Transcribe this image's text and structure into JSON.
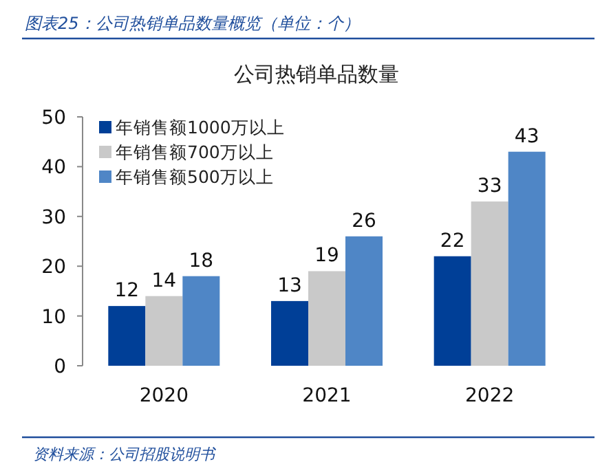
{
  "chart_data": {
    "type": "bar",
    "title": "公司热销单品数量",
    "annotations": [
      "图表25：公司热销单品数量概览（单位：个）",
      "资料来源：公司招股说明书"
    ],
    "categories": [
      "2020",
      "2021",
      "2022"
    ],
    "series": [
      {
        "name": "年销售额1000万以上",
        "color": "#003f97",
        "values": [
          12,
          13,
          22
        ]
      },
      {
        "name": "年销售额700万以上",
        "color": "#c9c9c9",
        "values": [
          14,
          19,
          33
        ]
      },
      {
        "name": "年销售额500万以上",
        "color": "#4f86c6",
        "values": [
          18,
          26,
          43
        ]
      }
    ],
    "ylim": [
      0,
      50
    ],
    "yticks": [
      0,
      10,
      20,
      30,
      40,
      50
    ],
    "data_labels": true,
    "legend": "top left"
  }
}
